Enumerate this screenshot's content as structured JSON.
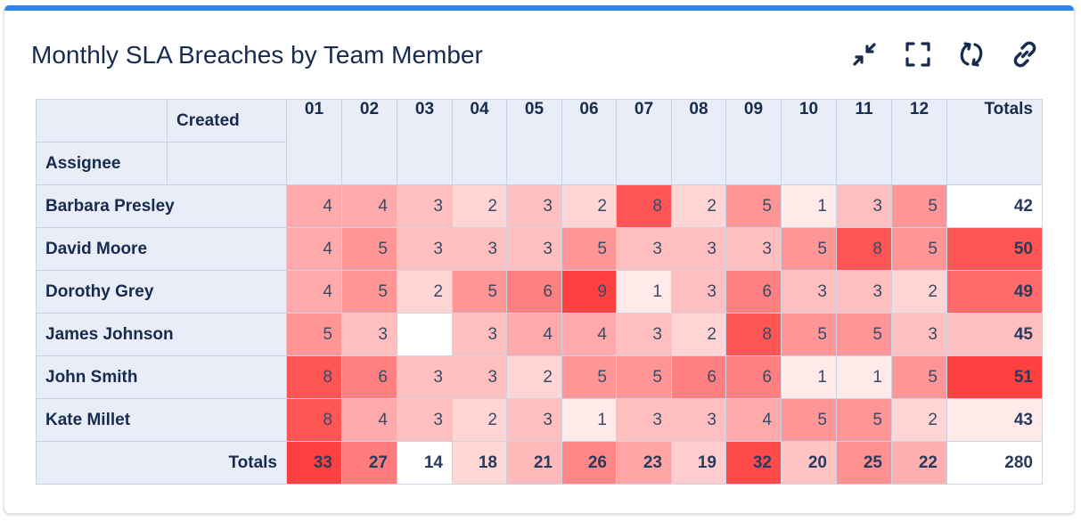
{
  "widget": {
    "title": "Monthly SLA Breaches by Team Member",
    "accent_color": "#2d87f0",
    "actions": [
      {
        "name": "collapse-icon",
        "label": "Collapse"
      },
      {
        "name": "fullscreen-icon",
        "label": "Full screen"
      },
      {
        "name": "refresh-icon",
        "label": "Refresh"
      },
      {
        "name": "link-icon",
        "label": "Copy link"
      }
    ]
  },
  "table": {
    "col_dimension_label": "Created",
    "row_dimension_label": "Assignee",
    "columns": [
      "01",
      "02",
      "03",
      "04",
      "05",
      "06",
      "07",
      "08",
      "09",
      "10",
      "11",
      "12"
    ],
    "totals_label": "Totals",
    "rows": [
      {
        "name": "Barbara Presley",
        "values": [
          4,
          4,
          3,
          2,
          3,
          2,
          8,
          2,
          5,
          1,
          3,
          5
        ],
        "total": 42
      },
      {
        "name": "David Moore",
        "values": [
          4,
          5,
          3,
          3,
          3,
          5,
          3,
          3,
          3,
          5,
          8,
          5
        ],
        "total": 50
      },
      {
        "name": "Dorothy Grey",
        "values": [
          4,
          5,
          2,
          5,
          6,
          9,
          1,
          3,
          6,
          3,
          3,
          2
        ],
        "total": 49
      },
      {
        "name": "James Johnson",
        "values": [
          5,
          3,
          null,
          3,
          4,
          4,
          3,
          2,
          8,
          5,
          5,
          3
        ],
        "total": 45
      },
      {
        "name": "John Smith",
        "values": [
          8,
          6,
          3,
          3,
          2,
          5,
          5,
          6,
          6,
          1,
          1,
          5
        ],
        "total": 51
      },
      {
        "name": "Kate Millet",
        "values": [
          8,
          4,
          3,
          2,
          3,
          1,
          3,
          3,
          4,
          5,
          5,
          2
        ],
        "total": 43
      }
    ],
    "column_totals": [
      33,
      27,
      14,
      18,
      21,
      26,
      23,
      19,
      32,
      20,
      25,
      22
    ],
    "grand_total": 280,
    "heat": {
      "low": "#ffffff",
      "high": "#ff4040"
    }
  },
  "chart_data": {
    "type": "heatmap",
    "title": "Monthly SLA Breaches by Team Member",
    "xlabel": "Created",
    "ylabel": "Assignee",
    "x": [
      "01",
      "02",
      "03",
      "04",
      "05",
      "06",
      "07",
      "08",
      "09",
      "10",
      "11",
      "12"
    ],
    "y": [
      "Barbara Presley",
      "David Moore",
      "Dorothy Grey",
      "James Johnson",
      "John Smith",
      "Kate Millet"
    ],
    "values": [
      [
        4,
        4,
        3,
        2,
        3,
        2,
        8,
        2,
        5,
        1,
        3,
        5
      ],
      [
        4,
        5,
        3,
        3,
        3,
        5,
        3,
        3,
        3,
        5,
        8,
        5
      ],
      [
        4,
        5,
        2,
        5,
        6,
        9,
        1,
        3,
        6,
        3,
        3,
        2
      ],
      [
        5,
        3,
        null,
        3,
        4,
        4,
        3,
        2,
        8,
        5,
        5,
        3
      ],
      [
        8,
        6,
        3,
        3,
        2,
        5,
        5,
        6,
        6,
        1,
        1,
        5
      ],
      [
        8,
        4,
        3,
        2,
        3,
        1,
        3,
        3,
        4,
        5,
        5,
        2
      ]
    ],
    "row_totals": [
      42,
      50,
      49,
      45,
      51,
      43
    ],
    "column_totals": [
      33,
      27,
      14,
      18,
      21,
      26,
      23,
      19,
      32,
      20,
      25,
      22
    ],
    "grand_total": 280
  }
}
